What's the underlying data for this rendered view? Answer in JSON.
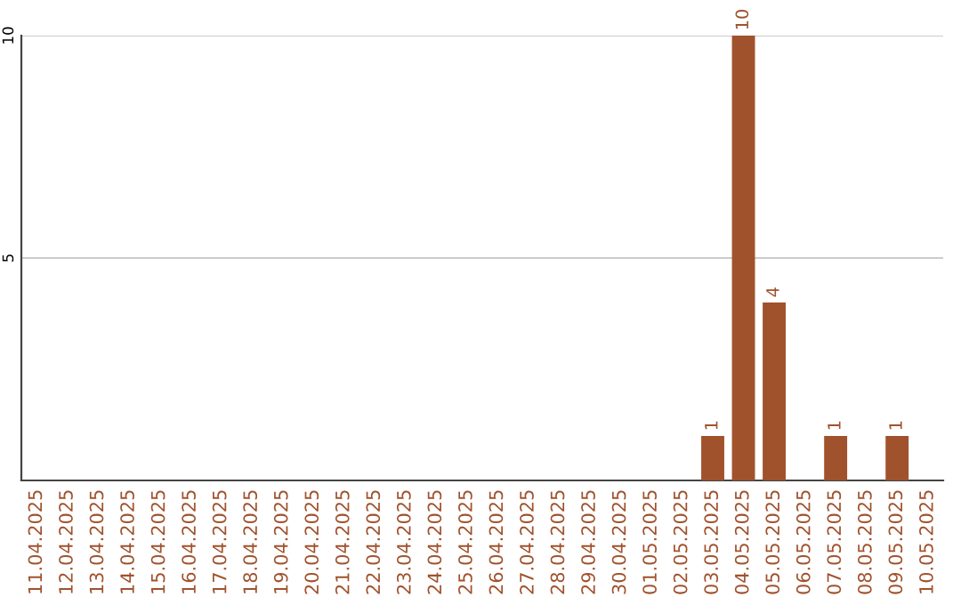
{
  "chart_data": {
    "type": "bar",
    "categories": [
      "11.04.2025",
      "12.04.2025",
      "13.04.2025",
      "14.04.2025",
      "15.04.2025",
      "16.04.2025",
      "17.04.2025",
      "18.04.2025",
      "19.04.2025",
      "20.04.2025",
      "21.04.2025",
      "22.04.2025",
      "23.04.2025",
      "24.04.2025",
      "25.04.2025",
      "26.04.2025",
      "27.04.2025",
      "28.04.2025",
      "29.04.2025",
      "30.04.2025",
      "01.05.2025",
      "02.05.2025",
      "03.05.2025",
      "04.05.2025",
      "05.05.2025",
      "06.05.2025",
      "07.05.2025",
      "08.05.2025",
      "09.05.2025",
      "10.05.2025"
    ],
    "values": [
      0,
      0,
      0,
      0,
      0,
      0,
      0,
      0,
      0,
      0,
      0,
      0,
      0,
      0,
      0,
      0,
      0,
      0,
      0,
      0,
      0,
      0,
      1,
      10,
      4,
      0,
      1,
      0,
      1,
      0
    ],
    "value_labels": [
      null,
      null,
      null,
      null,
      null,
      null,
      null,
      null,
      null,
      null,
      null,
      null,
      null,
      null,
      null,
      null,
      null,
      null,
      null,
      null,
      null,
      null,
      "1",
      "10",
      "4",
      null,
      "1",
      null,
      "1",
      null
    ],
    "color": "#a0522d",
    "ylim": [
      0,
      10
    ],
    "yticks": [
      5,
      10
    ],
    "grid": "y"
  }
}
